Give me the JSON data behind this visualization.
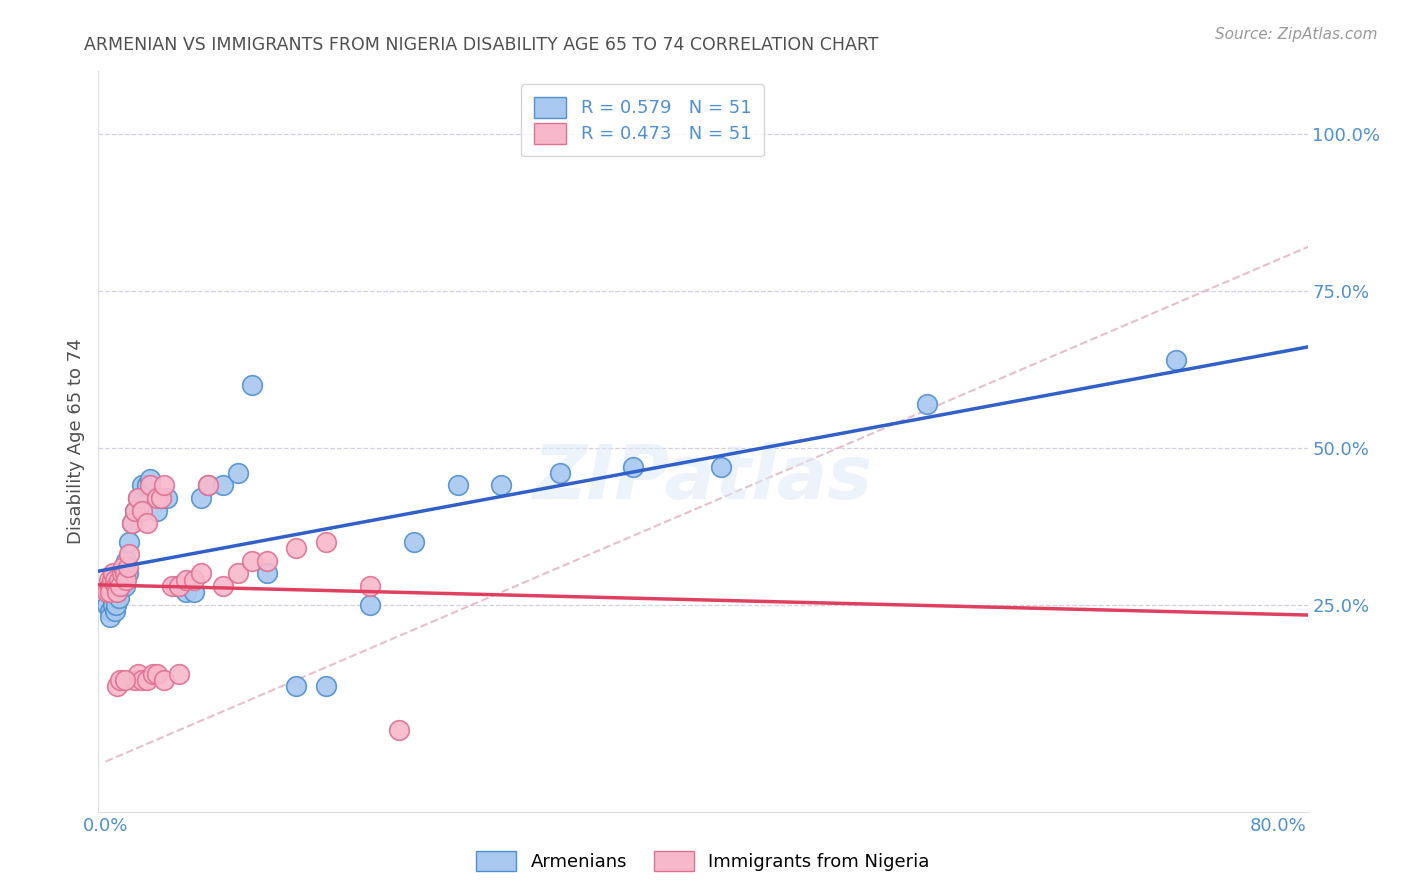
{
  "title": "ARMENIAN VS IMMIGRANTS FROM NIGERIA DISABILITY AGE 65 TO 74 CORRELATION CHART",
  "source": "Source: ZipAtlas.com",
  "ylabel_label": "Disability Age 65 to 74",
  "xlim": [
    -0.005,
    0.82
  ],
  "ylim": [
    -0.08,
    1.1
  ],
  "xticks": [
    0.0,
    0.2,
    0.4,
    0.6,
    0.8
  ],
  "xticklabels": [
    "0.0%",
    "",
    "",
    "",
    "80.0%"
  ],
  "yticks": [
    0.25,
    0.5,
    0.75,
    1.0
  ],
  "yticklabels": [
    "25.0%",
    "50.0%",
    "75.0%",
    "100.0%"
  ],
  "legend1_label": "R = 0.579   N = 51",
  "legend2_label": "R = 0.473   N = 51",
  "legend_armenian_color": "#a8c8f0",
  "legend_nigeria_color": "#f8b8cc",
  "blue_scatter_face": "#a8c8f0",
  "blue_scatter_edge": "#5090d0",
  "pink_scatter_face": "#f8b8cc",
  "pink_scatter_edge": "#e07090",
  "blue_line_color": "#3060c8",
  "pink_line_color": "#e04060",
  "diag_line_color": "#e0b0c0",
  "watermark": "ZIPatlas",
  "background_color": "#ffffff",
  "grid_color": "#d0d0e0",
  "title_color": "#505050",
  "axis_label_color": "#5090d0",
  "armenian_x": [
    0.001,
    0.002,
    0.003,
    0.003,
    0.004,
    0.005,
    0.005,
    0.006,
    0.006,
    0.007,
    0.007,
    0.008,
    0.008,
    0.009,
    0.01,
    0.01,
    0.011,
    0.012,
    0.013,
    0.014,
    0.015,
    0.016,
    0.018,
    0.02,
    0.022,
    0.025,
    0.028,
    0.03,
    0.035,
    0.038,
    0.042,
    0.048,
    0.055,
    0.06,
    0.065,
    0.07,
    0.08,
    0.09,
    0.1,
    0.11,
    0.13,
    0.15,
    0.18,
    0.21,
    0.24,
    0.27,
    0.31,
    0.36,
    0.42,
    0.56,
    0.73
  ],
  "armenian_y": [
    0.25,
    0.27,
    0.24,
    0.23,
    0.26,
    0.25,
    0.27,
    0.24,
    0.28,
    0.26,
    0.25,
    0.27,
    0.29,
    0.26,
    0.28,
    0.3,
    0.28,
    0.3,
    0.28,
    0.32,
    0.3,
    0.35,
    0.38,
    0.4,
    0.42,
    0.44,
    0.44,
    0.45,
    0.4,
    0.42,
    0.42,
    0.28,
    0.27,
    0.27,
    0.42,
    0.44,
    0.44,
    0.46,
    0.6,
    0.3,
    0.12,
    0.12,
    0.25,
    0.35,
    0.44,
    0.44,
    0.46,
    0.47,
    0.47,
    0.57,
    0.64
  ],
  "nigeria_x": [
    0.001,
    0.002,
    0.003,
    0.003,
    0.004,
    0.005,
    0.006,
    0.007,
    0.008,
    0.009,
    0.01,
    0.011,
    0.012,
    0.013,
    0.014,
    0.015,
    0.016,
    0.018,
    0.02,
    0.022,
    0.025,
    0.028,
    0.03,
    0.035,
    0.038,
    0.04,
    0.045,
    0.05,
    0.055,
    0.06,
    0.065,
    0.07,
    0.08,
    0.09,
    0.1,
    0.11,
    0.13,
    0.15,
    0.18,
    0.02,
    0.022,
    0.025,
    0.028,
    0.032,
    0.035,
    0.04,
    0.008,
    0.01,
    0.013,
    0.05,
    0.2
  ],
  "nigeria_y": [
    0.27,
    0.29,
    0.28,
    0.27,
    0.29,
    0.3,
    0.29,
    0.28,
    0.27,
    0.29,
    0.28,
    0.3,
    0.31,
    0.3,
    0.29,
    0.31,
    0.33,
    0.38,
    0.4,
    0.42,
    0.4,
    0.38,
    0.44,
    0.42,
    0.42,
    0.44,
    0.28,
    0.28,
    0.29,
    0.29,
    0.3,
    0.44,
    0.28,
    0.3,
    0.32,
    0.32,
    0.34,
    0.35,
    0.28,
    0.13,
    0.14,
    0.13,
    0.13,
    0.14,
    0.14,
    0.13,
    0.12,
    0.13,
    0.13,
    0.14,
    0.05
  ]
}
